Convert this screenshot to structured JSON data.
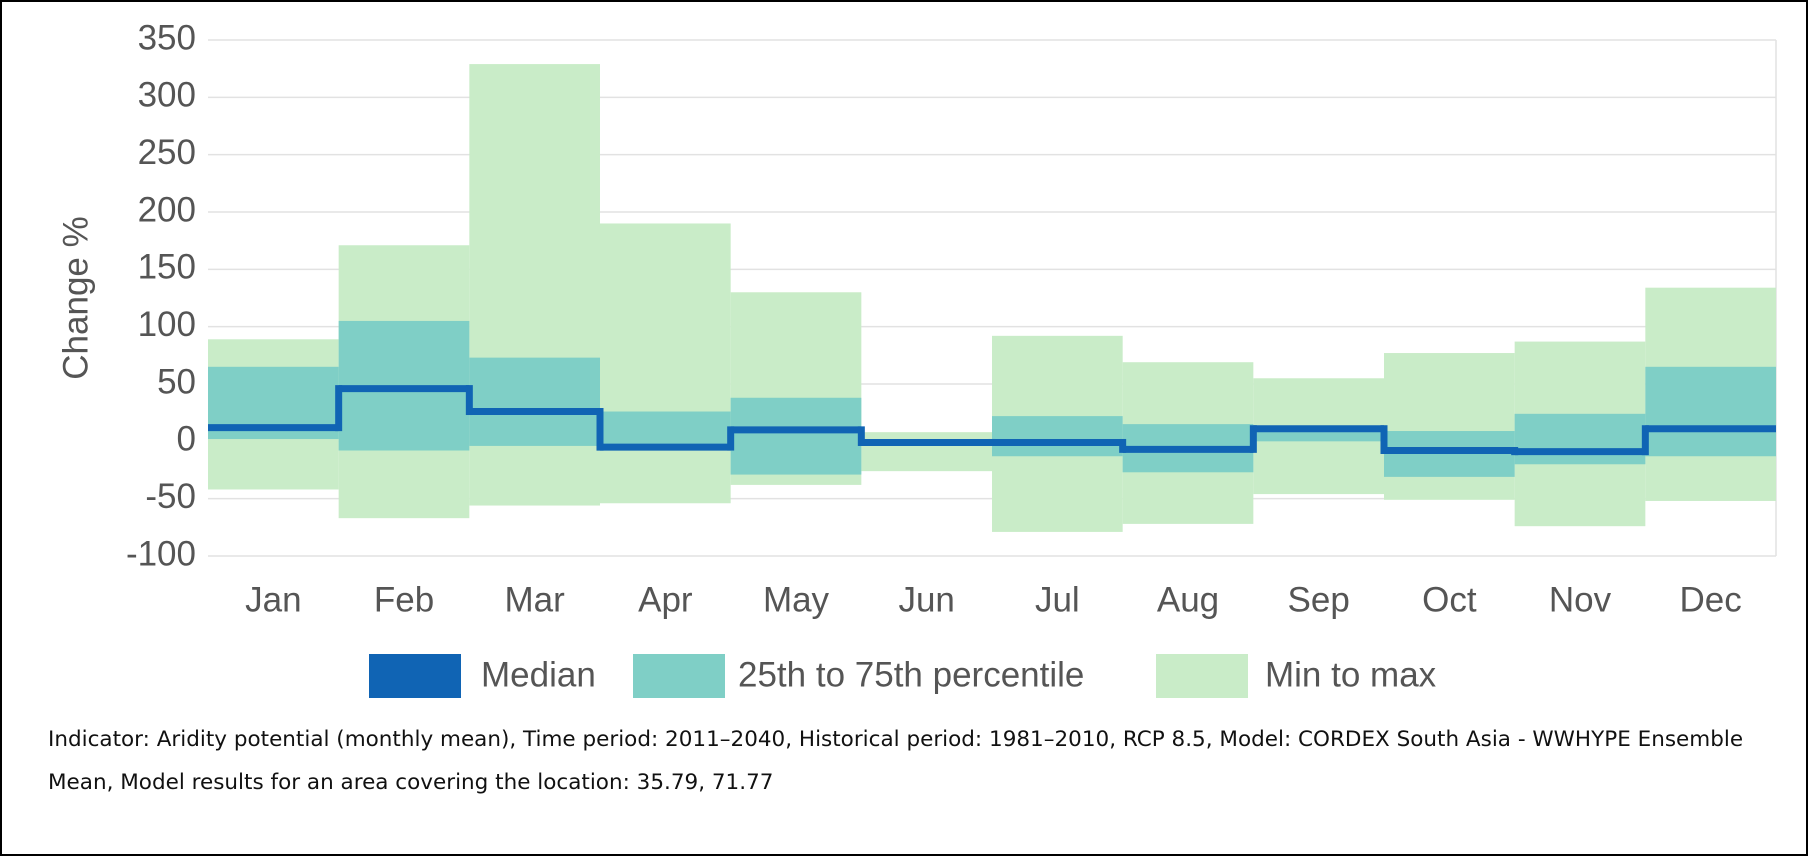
{
  "chart_data": {
    "type": "range-step",
    "y_label": "Change %",
    "categories": [
      "Jan",
      "Feb",
      "Mar",
      "Apr",
      "May",
      "Jun",
      "Jul",
      "Aug",
      "Sep",
      "Oct",
      "Nov",
      "Dec"
    ],
    "series": [
      {
        "name": "Median",
        "color": "#1064b4",
        "values": [
          12,
          46,
          26,
          -5,
          10,
          -1,
          -1,
          -7,
          11,
          -8,
          -9,
          11
        ]
      },
      {
        "name": "25th to 75th percentile",
        "color": "#7fcfc6",
        "low": [
          2,
          -8,
          -4,
          -3,
          -29,
          -3,
          -13,
          -27,
          0,
          -31,
          -20,
          -13
        ],
        "high": [
          65,
          105,
          73,
          26,
          38,
          1,
          22,
          15,
          11,
          9,
          24,
          65
        ]
      },
      {
        "name": "Min to max",
        "color": "#c9ecc8",
        "low": [
          -42,
          -67,
          -56,
          -54,
          -38,
          -26,
          -79,
          -72,
          -46,
          -51,
          -74,
          -52
        ],
        "high": [
          89,
          171,
          329,
          190,
          130,
          8,
          92,
          69,
          55,
          77,
          87,
          134
        ]
      }
    ],
    "ylim": [
      -100,
      350
    ],
    "yticks": [
      -100,
      -50,
      0,
      50,
      100,
      150,
      200,
      250,
      300,
      350
    ],
    "grid": true,
    "footnote": "Indicator: Aridity potential (monthly mean), Time period: 2011–2040, Historical period: 1981–2010, RCP 8.5, Model: CORDEX South Asia - WWHYPE Ensemble Mean, Model results for an area covering the location: 35.79, 71.77"
  }
}
